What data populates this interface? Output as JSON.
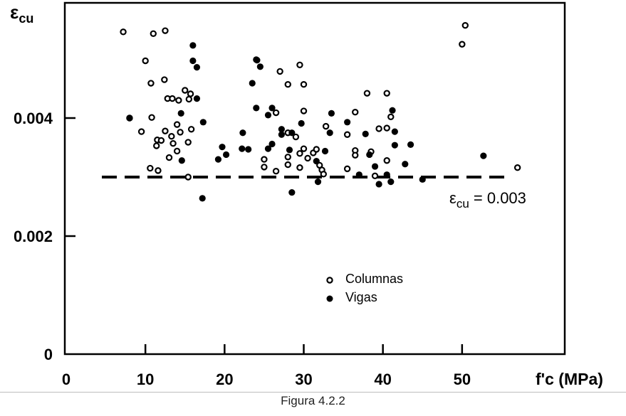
{
  "chart_data": {
    "type": "scatter",
    "title": "",
    "ylabel_main": "ε",
    "ylabel_sub": "cu",
    "xlabel": "f'c (MPa)",
    "xlim": [
      0,
      60
    ],
    "ylim": [
      0,
      0.006
    ],
    "x_ticks": [
      {
        "value": 0,
        "label": "0"
      },
      {
        "value": 10,
        "label": "10"
      },
      {
        "value": 20,
        "label": "20"
      },
      {
        "value": 30,
        "label": "30"
      },
      {
        "value": 40,
        "label": "40"
      },
      {
        "value": 50,
        "label": "50"
      }
    ],
    "y_ticks": [
      {
        "value": 0,
        "label": "0"
      },
      {
        "value": 0.002,
        "label": "0.002"
      },
      {
        "value": 0.004,
        "label": "0.004"
      }
    ],
    "grid": false,
    "legend_position": "lower-center",
    "series": [
      {
        "name": "Columnas",
        "marker": "open-circle",
        "points": [
          [
            7.2,
            0.00546
          ],
          [
            10.0,
            0.00497
          ],
          [
            10.7,
            0.00459
          ],
          [
            11.0,
            0.00543
          ],
          [
            12.5,
            0.00548
          ],
          [
            12.4,
            0.00465
          ],
          [
            12.8,
            0.00433
          ],
          [
            13.4,
            0.00433
          ],
          [
            14.2,
            0.0043
          ],
          [
            15.0,
            0.00447
          ],
          [
            15.7,
            0.00441
          ],
          [
            15.5,
            0.00432
          ],
          [
            8.0,
            0.004
          ],
          [
            10.8,
            0.00401
          ],
          [
            9.5,
            0.00377
          ],
          [
            11.5,
            0.00363
          ],
          [
            12.0,
            0.00362
          ],
          [
            12.5,
            0.00378
          ],
          [
            13.3,
            0.00369
          ],
          [
            14.0,
            0.00389
          ],
          [
            14.4,
            0.00376
          ],
          [
            15.8,
            0.00381
          ],
          [
            11.4,
            0.00353
          ],
          [
            13.5,
            0.00357
          ],
          [
            15.4,
            0.00359
          ],
          [
            14.0,
            0.00344
          ],
          [
            13.0,
            0.00333
          ],
          [
            10.6,
            0.00315
          ],
          [
            11.6,
            0.00311
          ],
          [
            15.4,
            0.003
          ],
          [
            27.0,
            0.00479
          ],
          [
            29.5,
            0.0049
          ],
          [
            28.0,
            0.00457
          ],
          [
            30.0,
            0.00457
          ],
          [
            26.5,
            0.00409
          ],
          [
            30.0,
            0.00412
          ],
          [
            28.0,
            0.00375
          ],
          [
            29.0,
            0.00368
          ],
          [
            28.0,
            0.00334
          ],
          [
            29.5,
            0.0034
          ],
          [
            30.0,
            0.00348
          ],
          [
            30.5,
            0.00332
          ],
          [
            31.2,
            0.00341
          ],
          [
            31.6,
            0.00347
          ],
          [
            32.0,
            0.0032
          ],
          [
            32.3,
            0.00312
          ],
          [
            32.5,
            0.00305
          ],
          [
            32.8,
            0.00386
          ],
          [
            25.0,
            0.0033
          ],
          [
            25.0,
            0.00317
          ],
          [
            26.5,
            0.0031
          ],
          [
            28.0,
            0.00321
          ],
          [
            29.5,
            0.00316
          ],
          [
            36.5,
            0.0041
          ],
          [
            38.0,
            0.00442
          ],
          [
            40.5,
            0.00442
          ],
          [
            35.5,
            0.00372
          ],
          [
            36.5,
            0.00345
          ],
          [
            36.5,
            0.00337
          ],
          [
            39.5,
            0.00382
          ],
          [
            41.0,
            0.00402
          ],
          [
            40.5,
            0.00383
          ],
          [
            38.5,
            0.00343
          ],
          [
            35.5,
            0.00314
          ],
          [
            39.0,
            0.00302
          ],
          [
            40.5,
            0.00328
          ],
          [
            50.4,
            0.00557
          ],
          [
            50.0,
            0.00525
          ],
          [
            57.0,
            0.00316
          ]
        ]
      },
      {
        "name": "Vigas",
        "marker": "filled-circle",
        "points": [
          [
            8.0,
            0.004
          ],
          [
            14.5,
            0.00408
          ],
          [
            16.0,
            0.00523
          ],
          [
            16.0,
            0.00497
          ],
          [
            16.5,
            0.00486
          ],
          [
            16.5,
            0.00433
          ],
          [
            17.3,
            0.00393
          ],
          [
            14.6,
            0.00328
          ],
          [
            17.2,
            0.00264
          ],
          [
            19.7,
            0.00351
          ],
          [
            19.2,
            0.0033
          ],
          [
            20.2,
            0.00338
          ],
          [
            22.3,
            0.00375
          ],
          [
            22.2,
            0.00348
          ],
          [
            23.0,
            0.00347
          ],
          [
            23.5,
            0.00459
          ],
          [
            24.0,
            0.00499
          ],
          [
            24.1,
            0.00498
          ],
          [
            24.5,
            0.00487
          ],
          [
            24.0,
            0.00417
          ],
          [
            25.5,
            0.00405
          ],
          [
            26.0,
            0.00417
          ],
          [
            26.0,
            0.00356
          ],
          [
            25.5,
            0.00348
          ],
          [
            27.2,
            0.00381
          ],
          [
            27.2,
            0.00372
          ],
          [
            28.2,
            0.00346
          ],
          [
            29.7,
            0.00391
          ],
          [
            28.5,
            0.00375
          ],
          [
            28.5,
            0.00274
          ],
          [
            31.8,
            0.00292
          ],
          [
            31.6,
            0.00327
          ],
          [
            32.7,
            0.00344
          ],
          [
            33.5,
            0.00408
          ],
          [
            33.3,
            0.00375
          ],
          [
            35.5,
            0.00393
          ],
          [
            37.0,
            0.00304
          ],
          [
            37.8,
            0.00373
          ],
          [
            38.3,
            0.00338
          ],
          [
            39.0,
            0.00318
          ],
          [
            39.5,
            0.00288
          ],
          [
            40.5,
            0.00304
          ],
          [
            41.2,
            0.00413
          ],
          [
            41.5,
            0.00354
          ],
          [
            41.0,
            0.00292
          ],
          [
            41.5,
            0.00377
          ],
          [
            42.8,
            0.00322
          ],
          [
            43.5,
            0.00355
          ],
          [
            45.0,
            0.00296
          ],
          [
            52.7,
            0.00336
          ]
        ]
      }
    ],
    "reference_line": {
      "y": 0.003,
      "x_start": 4.5,
      "x_end": 56,
      "style": "dashed"
    },
    "annotation": {
      "main": "ε",
      "sub": "cu",
      "rest": " = 0.003"
    },
    "legend": [
      {
        "label": "Columnas",
        "marker": "open-circle"
      },
      {
        "label": "Vigas",
        "marker": "filled-circle"
      }
    ]
  },
  "caption": "Figura 4.2.2"
}
